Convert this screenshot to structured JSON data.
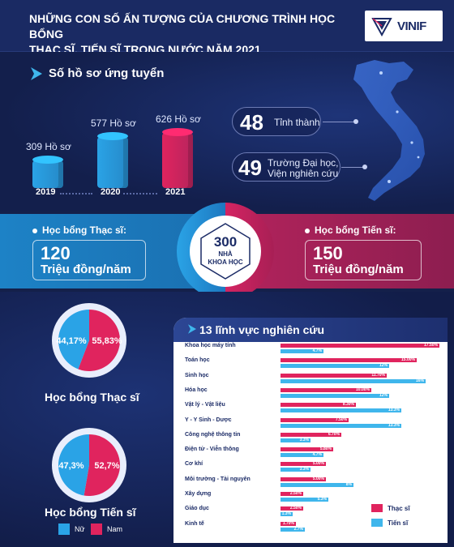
{
  "header": {
    "title_line1": "NHỮNG CON SỐ ẤN TƯỢNG CỦA CHƯƠNG TRÌNH HỌC BỔNG",
    "title_line2": "THẠC SĨ, TIẾN SĨ TRONG NƯỚC NĂM 2021",
    "logo_text": "VINIF"
  },
  "applications": {
    "title": "Số hồ sơ ứng tuyển",
    "bars": [
      {
        "year": "2019",
        "value": 309,
        "label": "309 Hồ sơ"
      },
      {
        "year": "2020",
        "value": 577,
        "label": "577 Hồ sơ"
      },
      {
        "year": "2021",
        "value": 626,
        "label": "626 Hồ sơ"
      }
    ],
    "colors": {
      "blue": "#2aa3e6",
      "pink": "#e0245e"
    }
  },
  "stats": [
    {
      "number": "48",
      "text_line1": "Tỉnh thành",
      "text_line2": ""
    },
    {
      "number": "49",
      "text_line1": "Trường Đại học,",
      "text_line2": "Viện nghiên cứu"
    }
  ],
  "scholarships": {
    "masters": {
      "label": "Học bổng Thạc sĩ:",
      "amount": "120",
      "unit": "Triệu đồng/năm"
    },
    "phd": {
      "label": "Học bổng Tiến sĩ:",
      "amount": "150",
      "unit": "Triệu đồng/năm"
    },
    "scientists": {
      "number": "300",
      "line1": "NHÀ",
      "line2": "KHOA HỌC"
    }
  },
  "pies": [
    {
      "title": "Học bổng Thạc sĩ",
      "female_label": "44,17%",
      "male_label": "55,83%",
      "female": 44.17,
      "male": 55.83
    },
    {
      "title": "Học bổng Tiến sĩ",
      "female_label": "47,3%",
      "male_label": "52,7%",
      "female": 47.3,
      "male": 52.7
    }
  ],
  "pie_legend": {
    "female": "Nữ",
    "male": "Nam"
  },
  "chart_data": {
    "type": "bar",
    "title": "13 lĩnh vực nghiên cứu",
    "categories": [
      "Khoa học máy tính",
      "Toán học",
      "Sinh học",
      "Hóa học",
      "Vật lý - Vật liệu",
      "Y - Y Sinh - Dược",
      "Công nghệ thông tin",
      "Điện tử - Viễn thông",
      "Cơ khí",
      "Môi trường - Tài nguyên",
      "Xây dựng",
      "Giáo dục",
      "Kinh tế"
    ],
    "series": [
      {
        "name": "Thạc sĩ",
        "color": "#e0245e",
        "values": [
          17.5,
          15.0,
          11.7,
          10.0,
          8.3,
          7.5,
          6.7,
          5.8,
          5.0,
          5.0,
          2.5,
          2.5,
          1.7
        ],
        "labels": [
          "17.50%",
          "15.00%",
          "11.70%",
          "10.00%",
          "8.30%",
          "7.50%",
          "6.70%",
          "5.80%",
          "5.00%",
          "5.00%",
          "2.50%",
          "2.50%",
          "1.70%"
        ]
      },
      {
        "name": "Tiến sĩ",
        "color": "#3fb6ec",
        "values": [
          4.7,
          12.0,
          16.0,
          12.0,
          13.3,
          13.3,
          3.3,
          4.7,
          3.3,
          8.0,
          5.3,
          1.3,
          2.7
        ],
        "labels": [
          "4.7%",
          "12%",
          "16%",
          "12%",
          "13.3%",
          "13.3%",
          "3.3%",
          "4.7%",
          "3.3%",
          "8%",
          "5.3%",
          "1.3%",
          "2.7%"
        ]
      }
    ]
  }
}
